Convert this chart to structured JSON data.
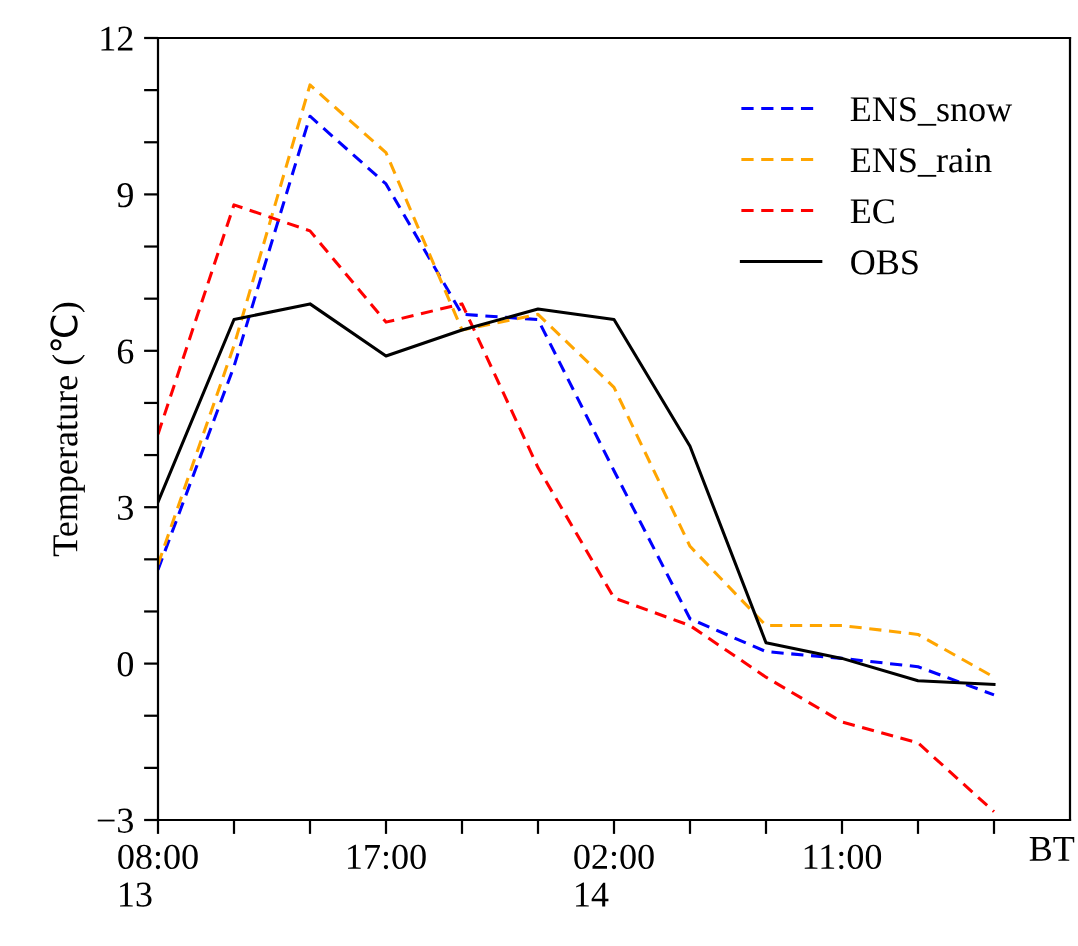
{
  "chart_data": {
    "type": "line",
    "xlabel": "BT",
    "ylabel": "Temperature (℃)",
    "categories": [
      "08:00\n13",
      null,
      null,
      "17:00",
      null,
      null,
      "02:00\n14",
      null,
      null,
      "11:00",
      null,
      null
    ],
    "ylim": [
      -3,
      12
    ],
    "yticks": [
      {
        "value": -3,
        "label": "−3"
      },
      {
        "value": -2,
        "label": null
      },
      {
        "value": -1,
        "label": null
      },
      0,
      {
        "value": 1,
        "label": null
      },
      {
        "value": 2,
        "label": null
      },
      3,
      {
        "value": 4,
        "label": null
      },
      {
        "value": 5,
        "label": null
      },
      6,
      {
        "value": 7,
        "label": null
      },
      {
        "value": 8,
        "label": null
      },
      9,
      {
        "value": 10,
        "label": null
      },
      {
        "value": 11,
        "label": null
      },
      12
    ],
    "grid": false,
    "legend": "top right",
    "series": [
      {
        "name": "ENS_snow",
        "color": "#0000ff",
        "line_style": "dashed",
        "values": [
          1.8,
          5.7,
          10.5,
          9.2,
          6.7,
          6.6,
          3.7,
          0.86,
          0.23,
          0.1,
          -0.06,
          -0.6
        ]
      },
      {
        "name": "ENS_rain",
        "color": "#ffa500",
        "line_style": "dashed",
        "values": [
          1.9,
          6.1,
          11.1,
          9.8,
          6.4,
          6.7,
          5.3,
          2.25,
          0.73,
          0.73,
          0.56,
          -0.26
        ]
      },
      {
        "name": "EC",
        "color": "#ff0000",
        "line_style": "dashed",
        "values": [
          4.4,
          8.8,
          8.3,
          6.55,
          6.9,
          3.76,
          1.26,
          0.73,
          -0.26,
          -1.12,
          -1.52,
          -2.84
        ]
      },
      {
        "name": "OBS",
        "color": "#000000",
        "line_style": "solid",
        "values": [
          3.1,
          6.6,
          6.9,
          5.9,
          6.4,
          6.8,
          6.6,
          4.17,
          0.4,
          0.1,
          -0.33,
          -0.4
        ]
      }
    ]
  }
}
